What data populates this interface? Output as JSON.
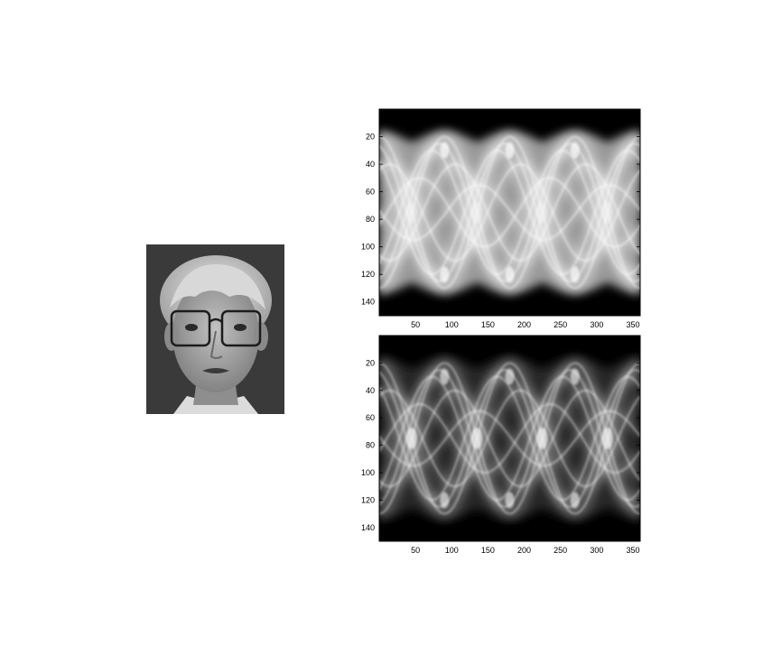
{
  "photo": {
    "colors": {
      "background": "#3a3a3a",
      "skin": "#a7a7a7",
      "hair": "#d2d2d2",
      "shirt": "#e0e0e0"
    }
  },
  "chart_data": [
    {
      "type": "heatmap",
      "colormap": "gray",
      "xlim": [
        0,
        360
      ],
      "ylim": [
        0,
        150
      ],
      "y_inverted": true,
      "xticks": [
        50,
        100,
        150,
        200,
        250,
        300,
        350
      ],
      "yticks": [
        20,
        40,
        60,
        80,
        100,
        120,
        140
      ],
      "xtick_labels": [
        "50",
        "100",
        "150",
        "200",
        "250",
        "300",
        "350"
      ],
      "ytick_labels": [
        "20",
        "40",
        "60",
        "80",
        "100",
        "120",
        "140"
      ],
      "grid": false,
      "style": "bright"
    },
    {
      "type": "heatmap",
      "colormap": "gray",
      "xlim": [
        0,
        360
      ],
      "ylim": [
        0,
        150
      ],
      "y_inverted": true,
      "xticks": [
        50,
        100,
        150,
        200,
        250,
        300,
        350
      ],
      "yticks": [
        20,
        40,
        60,
        80,
        100,
        120,
        140
      ],
      "xtick_labels": [
        "50",
        "100",
        "150",
        "200",
        "250",
        "300",
        "350"
      ],
      "ytick_labels": [
        "20",
        "40",
        "60",
        "80",
        "100",
        "120",
        "140"
      ],
      "grid": false,
      "style": "dark"
    }
  ]
}
